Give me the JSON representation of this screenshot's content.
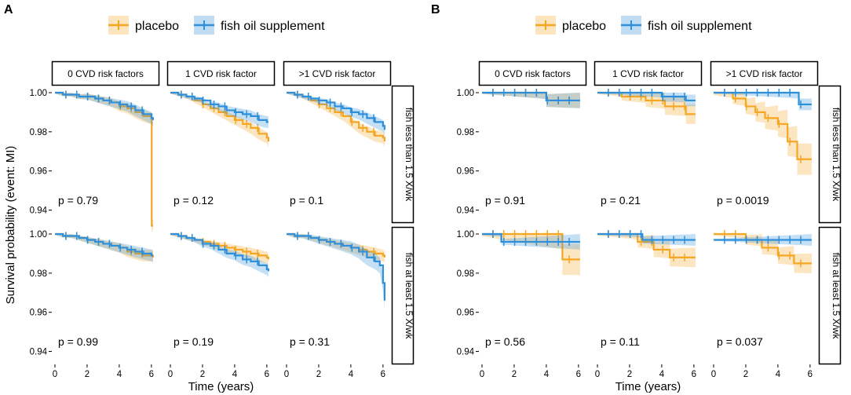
{
  "chart_data": {
    "type": "line",
    "subtype": "kaplan-meier survival curves with 95% confidence bands",
    "ylabel": "Survival probability (event: MI)",
    "xlabel": "Time (years)",
    "xlim": [
      0,
      6.3
    ],
    "xticks": [
      0,
      2,
      4,
      6
    ],
    "ylim": [
      0.935,
      1.002
    ],
    "yticks": [
      0.94,
      0.96,
      0.98,
      1.0
    ],
    "ytick_labels": [
      "0.94",
      "0.96",
      "0.98",
      "1.00"
    ],
    "colors": {
      "placebo": "#F5A623",
      "fish oil supplement": "#2E8FDB"
    },
    "legend": [
      "placebo",
      "fish oil supplement"
    ],
    "col_strips": [
      "0 CVD risk factors",
      "1 CVD risk factor",
      ">1 CVD risk factor"
    ],
    "row_strips": [
      "fish less than 1.5 X/wk",
      "fish at least 1.5 X/wk"
    ],
    "figures": [
      {
        "label": "A",
        "panels": [
          {
            "row": 0,
            "col": 0,
            "p_label": "p = 0.79",
            "series": [
              {
                "name": "placebo",
                "x": [
                  0,
                  0.5,
                  1,
                  1.5,
                  2,
                  2.5,
                  3,
                  3.5,
                  4,
                  4.5,
                  5,
                  5.5,
                  6,
                  6.02,
                  6.1
                ],
                "y": [
                  1.0,
                  0.999,
                  0.999,
                  0.998,
                  0.998,
                  0.997,
                  0.996,
                  0.995,
                  0.993,
                  0.992,
                  0.99,
                  0.988,
                  0.987,
                  0.932,
                  0.932
                ],
                "band": 0.003
              },
              {
                "name": "fish oil supplement",
                "x": [
                  0,
                  0.5,
                  1,
                  1.5,
                  2,
                  2.5,
                  3,
                  3.5,
                  4,
                  4.5,
                  5,
                  5.5,
                  6,
                  6.1
                ],
                "y": [
                  1.0,
                  0.999,
                  0.999,
                  0.998,
                  0.998,
                  0.997,
                  0.996,
                  0.995,
                  0.994,
                  0.993,
                  0.991,
                  0.989,
                  0.987,
                  0.986
                ],
                "band": 0.003
              }
            ]
          },
          {
            "row": 0,
            "col": 1,
            "p_label": "p = 0.12",
            "series": [
              {
                "name": "placebo",
                "x": [
                  0,
                  0.5,
                  1,
                  1.5,
                  2,
                  2.5,
                  3,
                  3.5,
                  4,
                  4.5,
                  5,
                  5.5,
                  6,
                  6.1
                ],
                "y": [
                  1.0,
                  0.999,
                  0.998,
                  0.996,
                  0.994,
                  0.992,
                  0.99,
                  0.988,
                  0.986,
                  0.984,
                  0.982,
                  0.979,
                  0.977,
                  0.975
                ],
                "band": 0.003
              },
              {
                "name": "fish oil supplement",
                "x": [
                  0,
                  0.5,
                  1,
                  1.5,
                  2,
                  2.5,
                  3,
                  3.5,
                  4,
                  4.5,
                  5,
                  5.5,
                  6,
                  6.1
                ],
                "y": [
                  1.0,
                  0.999,
                  0.998,
                  0.997,
                  0.996,
                  0.994,
                  0.993,
                  0.991,
                  0.99,
                  0.989,
                  0.988,
                  0.986,
                  0.985,
                  0.985
                ],
                "band": 0.003
              }
            ]
          },
          {
            "row": 0,
            "col": 2,
            "p_label": "p = 0.1",
            "series": [
              {
                "name": "placebo",
                "x": [
                  0,
                  0.5,
                  1,
                  1.5,
                  2,
                  2.5,
                  3,
                  3.5,
                  4,
                  4.5,
                  5,
                  5.5,
                  6,
                  6.1
                ],
                "y": [
                  1.0,
                  0.999,
                  0.998,
                  0.996,
                  0.994,
                  0.992,
                  0.99,
                  0.988,
                  0.985,
                  0.982,
                  0.98,
                  0.978,
                  0.977,
                  0.975
                ],
                "band": 0.003
              },
              {
                "name": "fish oil supplement",
                "x": [
                  0,
                  0.5,
                  1,
                  1.5,
                  2,
                  2.5,
                  3,
                  3.5,
                  4,
                  4.5,
                  5,
                  5.5,
                  6,
                  6.1
                ],
                "y": [
                  1.0,
                  0.999,
                  0.998,
                  0.997,
                  0.996,
                  0.995,
                  0.993,
                  0.992,
                  0.99,
                  0.989,
                  0.987,
                  0.985,
                  0.983,
                  0.981
                ],
                "band": 0.003
              }
            ]
          },
          {
            "row": 1,
            "col": 0,
            "p_label": "p = 0.99",
            "series": [
              {
                "name": "placebo",
                "x": [
                  0,
                  0.5,
                  1,
                  1.5,
                  2,
                  2.5,
                  3,
                  3.5,
                  4,
                  4.5,
                  5,
                  5.5,
                  6,
                  6.1
                ],
                "y": [
                  1.0,
                  0.999,
                  0.999,
                  0.998,
                  0.997,
                  0.996,
                  0.995,
                  0.994,
                  0.993,
                  0.991,
                  0.99,
                  0.989,
                  0.989,
                  0.988
                ],
                "band": 0.003
              },
              {
                "name": "fish oil supplement",
                "x": [
                  0,
                  0.5,
                  1,
                  1.5,
                  2,
                  2.5,
                  3,
                  3.5,
                  4,
                  4.5,
                  5,
                  5.5,
                  6,
                  6.1
                ],
                "y": [
                  1.0,
                  0.999,
                  0.999,
                  0.998,
                  0.997,
                  0.996,
                  0.995,
                  0.994,
                  0.993,
                  0.992,
                  0.991,
                  0.99,
                  0.989,
                  0.989
                ],
                "band": 0.003
              }
            ]
          },
          {
            "row": 1,
            "col": 1,
            "p_label": "p = 0.19",
            "series": [
              {
                "name": "placebo",
                "x": [
                  0,
                  0.5,
                  1,
                  1.5,
                  2,
                  2.5,
                  3,
                  3.5,
                  4,
                  4.5,
                  5,
                  5.5,
                  6,
                  6.1
                ],
                "y": [
                  1.0,
                  0.999,
                  0.998,
                  0.997,
                  0.996,
                  0.995,
                  0.994,
                  0.993,
                  0.992,
                  0.991,
                  0.99,
                  0.989,
                  0.988,
                  0.987
                ],
                "band": 0.003
              },
              {
                "name": "fish oil supplement",
                "x": [
                  0,
                  0.5,
                  1,
                  1.5,
                  2,
                  2.5,
                  3,
                  3.5,
                  4,
                  4.5,
                  5,
                  5.5,
                  6,
                  6.1
                ],
                "y": [
                  1.0,
                  0.999,
                  0.998,
                  0.997,
                  0.995,
                  0.994,
                  0.992,
                  0.99,
                  0.989,
                  0.987,
                  0.986,
                  0.984,
                  0.982,
                  0.981
                ],
                "band": 0.003
              }
            ]
          },
          {
            "row": 1,
            "col": 2,
            "p_label": "p = 0.31",
            "series": [
              {
                "name": "placebo",
                "x": [
                  0,
                  0.5,
                  1,
                  1.5,
                  2,
                  2.5,
                  3,
                  3.5,
                  4,
                  4.5,
                  5,
                  5.5,
                  6,
                  6.1
                ],
                "y": [
                  1.0,
                  0.999,
                  0.999,
                  0.998,
                  0.997,
                  0.996,
                  0.995,
                  0.994,
                  0.993,
                  0.992,
                  0.991,
                  0.99,
                  0.989,
                  0.988
                ],
                "band": 0.003
              },
              {
                "name": "fish oil supplement",
                "x": [
                  0,
                  0.5,
                  1,
                  1.5,
                  2,
                  2.5,
                  3,
                  3.5,
                  4,
                  4.5,
                  5,
                  5.5,
                  5.8,
                  6.0,
                  6.1
                ],
                "y": [
                  1.0,
                  0.999,
                  0.999,
                  0.998,
                  0.997,
                  0.996,
                  0.995,
                  0.994,
                  0.993,
                  0.991,
                  0.988,
                  0.986,
                  0.984,
                  0.975,
                  0.966
                ],
                "band": 0.004
              }
            ]
          }
        ]
      },
      {
        "label": "B",
        "panels": [
          {
            "row": 0,
            "col": 0,
            "p_label": "p = 0.91",
            "series": [
              {
                "name": "placebo",
                "x": [
                  0,
                  4,
                  4,
                  6.1
                ],
                "y": [
                  1.0,
                  1.0,
                  0.996,
                  0.996
                ],
                "band": 0.004
              },
              {
                "name": "fish oil supplement",
                "x": [
                  0,
                  4,
                  4,
                  6.1
                ],
                "y": [
                  1.0,
                  1.0,
                  0.996,
                  0.996
                ],
                "band": 0.004
              }
            ]
          },
          {
            "row": 0,
            "col": 1,
            "p_label": "p = 0.21",
            "series": [
              {
                "name": "placebo",
                "x": [
                  0,
                  1.5,
                  1.5,
                  3,
                  3,
                  4.2,
                  4.2,
                  5.5,
                  5.5,
                  6.1
                ],
                "y": [
                  1.0,
                  1.0,
                  0.998,
                  0.998,
                  0.996,
                  0.996,
                  0.993,
                  0.993,
                  0.989,
                  0.989
                ],
                "band": 0.005
              },
              {
                "name": "fish oil supplement",
                "x": [
                  0,
                  4,
                  4,
                  5.5,
                  5.5,
                  6.1
                ],
                "y": [
                  1.0,
                  1.0,
                  0.998,
                  0.998,
                  0.996,
                  0.996
                ],
                "band": 0.003
              }
            ]
          },
          {
            "row": 0,
            "col": 2,
            "p_label": "p = 0.0019",
            "series": [
              {
                "name": "placebo",
                "x": [
                  0,
                  1.2,
                  1.2,
                  2.0,
                  2.0,
                  2.6,
                  2.6,
                  3.2,
                  3.2,
                  4.0,
                  4.0,
                  4.6,
                  4.6,
                  5.2,
                  5.2,
                  6.1
                ],
                "y": [
                  1.0,
                  1.0,
                  0.997,
                  0.997,
                  0.993,
                  0.993,
                  0.99,
                  0.99,
                  0.987,
                  0.987,
                  0.984,
                  0.984,
                  0.975,
                  0.975,
                  0.966,
                  0.966
                ],
                "band": 0.008
              },
              {
                "name": "fish oil supplement",
                "x": [
                  0,
                  5.3,
                  5.3,
                  6.1
                ],
                "y": [
                  1.0,
                  1.0,
                  0.994,
                  0.994
                ],
                "band": 0.003
              }
            ]
          },
          {
            "row": 1,
            "col": 0,
            "p_label": "p = 0.56",
            "series": [
              {
                "name": "placebo",
                "x": [
                  0,
                  5,
                  5,
                  6.1
                ],
                "y": [
                  1.0,
                  1.0,
                  0.987,
                  0.987
                ],
                "band": 0.008
              },
              {
                "name": "fish oil supplement",
                "x": [
                  0,
                  1.2,
                  1.2,
                  6.1
                ],
                "y": [
                  1.0,
                  1.0,
                  0.996,
                  0.996
                ],
                "band": 0.004
              }
            ]
          },
          {
            "row": 1,
            "col": 1,
            "p_label": "p = 0.11",
            "series": [
              {
                "name": "placebo",
                "x": [
                  0,
                  2.5,
                  2.5,
                  3.5,
                  3.5,
                  4.5,
                  4.5,
                  6.1
                ],
                "y": [
                  1.0,
                  1.0,
                  0.996,
                  0.996,
                  0.992,
                  0.992,
                  0.988,
                  0.988
                ],
                "band": 0.005
              },
              {
                "name": "fish oil supplement",
                "x": [
                  0,
                  2.8,
                  2.8,
                  6.1
                ],
                "y": [
                  1.0,
                  1.0,
                  0.997,
                  0.997
                ],
                "band": 0.003
              }
            ]
          },
          {
            "row": 1,
            "col": 2,
            "p_label": "p = 0.037",
            "series": [
              {
                "name": "placebo",
                "x": [
                  0,
                  2,
                  2,
                  3,
                  3,
                  4,
                  4,
                  5,
                  5,
                  6.1
                ],
                "y": [
                  1.0,
                  1.0,
                  0.997,
                  0.997,
                  0.993,
                  0.993,
                  0.989,
                  0.989,
                  0.985,
                  0.985
                ],
                "band": 0.005
              },
              {
                "name": "fish oil supplement",
                "x": [
                  0,
                  6.1
                ],
                "y": [
                  0.997,
                  0.997
                ],
                "band": 0.003
              }
            ]
          }
        ]
      }
    ]
  }
}
